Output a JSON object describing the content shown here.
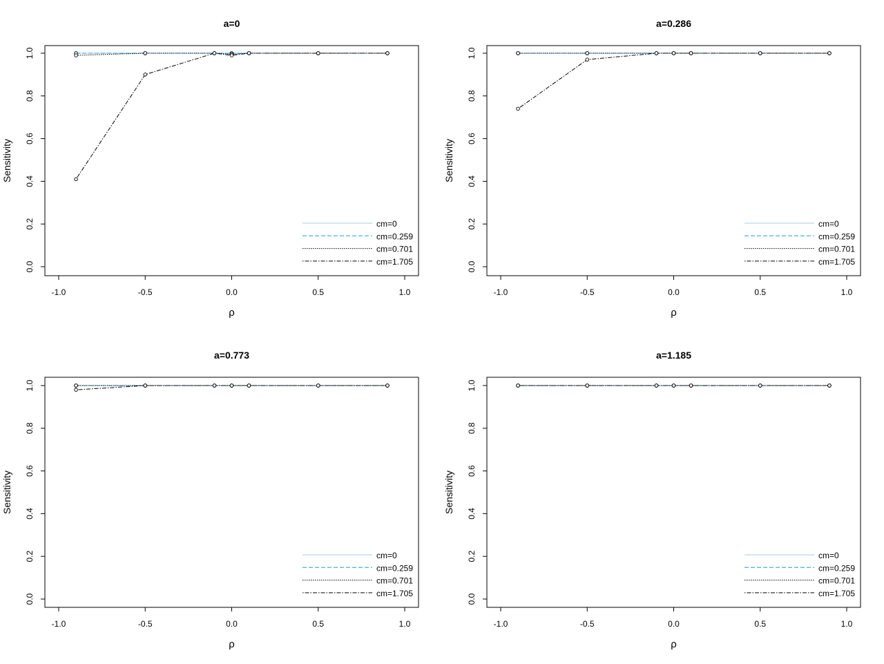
{
  "chart_data": [
    {
      "type": "line",
      "title": "a=0",
      "xlabel": "ρ",
      "ylabel": "Sensitivity",
      "xlim": [
        -1.0,
        1.0
      ],
      "ylim": [
        0.0,
        1.0
      ],
      "xticks": [
        "-1.0",
        "-0.5",
        "0.0",
        "0.5",
        "1.0"
      ],
      "yticks": [
        "0.0",
        "0.2",
        "0.4",
        "0.6",
        "0.8",
        "1.0"
      ],
      "legend_position": "bottom-right",
      "x": [
        -0.9,
        -0.5,
        -0.1,
        0.0,
        0.1,
        0.5,
        0.9
      ],
      "series": [
        {
          "name": "cm=0",
          "values": [
            1.0,
            1.0,
            1.0,
            1.0,
            1.0,
            1.0,
            1.0
          ],
          "color": "#a6cee3",
          "dash": "solid"
        },
        {
          "name": "cm=0.259",
          "values": [
            1.0,
            1.0,
            1.0,
            1.0,
            1.0,
            1.0,
            1.0
          ],
          "color": "#1f9bd7",
          "dash": "dashed"
        },
        {
          "name": "cm=0.701",
          "values": [
            0.99,
            1.0,
            1.0,
            0.995,
            1.0,
            1.0,
            1.0
          ],
          "color": "#000000",
          "dash": "dotted"
        },
        {
          "name": "cm=1.705",
          "values": [
            0.41,
            0.9,
            1.0,
            0.99,
            1.0,
            1.0,
            1.0
          ],
          "color": "#000000",
          "dash": "dotdash"
        }
      ]
    },
    {
      "type": "line",
      "title": "a=0.286",
      "xlabel": "ρ",
      "ylabel": "Sensitivity",
      "xlim": [
        -1.0,
        1.0
      ],
      "ylim": [
        0.0,
        1.0
      ],
      "xticks": [
        "-1.0",
        "-0.5",
        "0.0",
        "0.5",
        "1.0"
      ],
      "yticks": [
        "0.0",
        "0.2",
        "0.4",
        "0.6",
        "0.8",
        "1.0"
      ],
      "legend_position": "bottom-right",
      "x": [
        -0.9,
        -0.5,
        -0.1,
        0.0,
        0.1,
        0.5,
        0.9
      ],
      "series": [
        {
          "name": "cm=0",
          "values": [
            1.0,
            1.0,
            1.0,
            1.0,
            1.0,
            1.0,
            1.0
          ],
          "color": "#a6cee3",
          "dash": "solid"
        },
        {
          "name": "cm=0.259",
          "values": [
            1.0,
            1.0,
            1.0,
            1.0,
            1.0,
            1.0,
            1.0
          ],
          "color": "#1f9bd7",
          "dash": "dashed"
        },
        {
          "name": "cm=0.701",
          "values": [
            1.0,
            1.0,
            1.0,
            1.0,
            1.0,
            1.0,
            1.0
          ],
          "color": "#000000",
          "dash": "dotted"
        },
        {
          "name": "cm=1.705",
          "values": [
            0.74,
            0.97,
            1.0,
            1.0,
            1.0,
            1.0,
            1.0
          ],
          "color": "#000000",
          "dash": "dotdash"
        }
      ]
    },
    {
      "type": "line",
      "title": "a=0.773",
      "xlabel": "ρ",
      "ylabel": "Sensitivity",
      "xlim": [
        -1.0,
        1.0
      ],
      "ylim": [
        0.0,
        1.0
      ],
      "xticks": [
        "-1.0",
        "-0.5",
        "0.0",
        "0.5",
        "1.0"
      ],
      "yticks": [
        "0.0",
        "0.2",
        "0.4",
        "0.6",
        "0.8",
        "1.0"
      ],
      "legend_position": "bottom-right",
      "x": [
        -0.9,
        -0.5,
        -0.1,
        0.0,
        0.1,
        0.5,
        0.9
      ],
      "series": [
        {
          "name": "cm=0",
          "values": [
            1.0,
            1.0,
            1.0,
            1.0,
            1.0,
            1.0,
            1.0
          ],
          "color": "#a6cee3",
          "dash": "solid"
        },
        {
          "name": "cm=0.259",
          "values": [
            1.0,
            1.0,
            1.0,
            1.0,
            1.0,
            1.0,
            1.0
          ],
          "color": "#1f9bd7",
          "dash": "dashed"
        },
        {
          "name": "cm=0.701",
          "values": [
            1.0,
            1.0,
            1.0,
            1.0,
            1.0,
            1.0,
            1.0
          ],
          "color": "#000000",
          "dash": "dotted"
        },
        {
          "name": "cm=1.705",
          "values": [
            0.98,
            1.0,
            1.0,
            1.0,
            1.0,
            1.0,
            1.0
          ],
          "color": "#000000",
          "dash": "dotdash"
        }
      ]
    },
    {
      "type": "line",
      "title": "a=1.185",
      "xlabel": "ρ",
      "ylabel": "Sensitivity",
      "xlim": [
        -1.0,
        1.0
      ],
      "ylim": [
        0.0,
        1.0
      ],
      "xticks": [
        "-1.0",
        "-0.5",
        "0.0",
        "0.5",
        "1.0"
      ],
      "yticks": [
        "0.0",
        "0.2",
        "0.4",
        "0.6",
        "0.8",
        "1.0"
      ],
      "legend_position": "bottom-right",
      "x": [
        -0.9,
        -0.5,
        -0.1,
        0.0,
        0.1,
        0.5,
        0.9
      ],
      "series": [
        {
          "name": "cm=0",
          "values": [
            1.0,
            1.0,
            1.0,
            1.0,
            1.0,
            1.0,
            1.0
          ],
          "color": "#a6cee3",
          "dash": "solid"
        },
        {
          "name": "cm=0.259",
          "values": [
            1.0,
            1.0,
            1.0,
            1.0,
            1.0,
            1.0,
            1.0
          ],
          "color": "#1f9bd7",
          "dash": "dashed"
        },
        {
          "name": "cm=0.701",
          "values": [
            1.0,
            1.0,
            1.0,
            1.0,
            1.0,
            1.0,
            1.0
          ],
          "color": "#000000",
          "dash": "dotted"
        },
        {
          "name": "cm=1.705",
          "values": [
            1.0,
            1.0,
            1.0,
            1.0,
            1.0,
            1.0,
            1.0
          ],
          "color": "#000000",
          "dash": "dotdash"
        }
      ]
    }
  ]
}
